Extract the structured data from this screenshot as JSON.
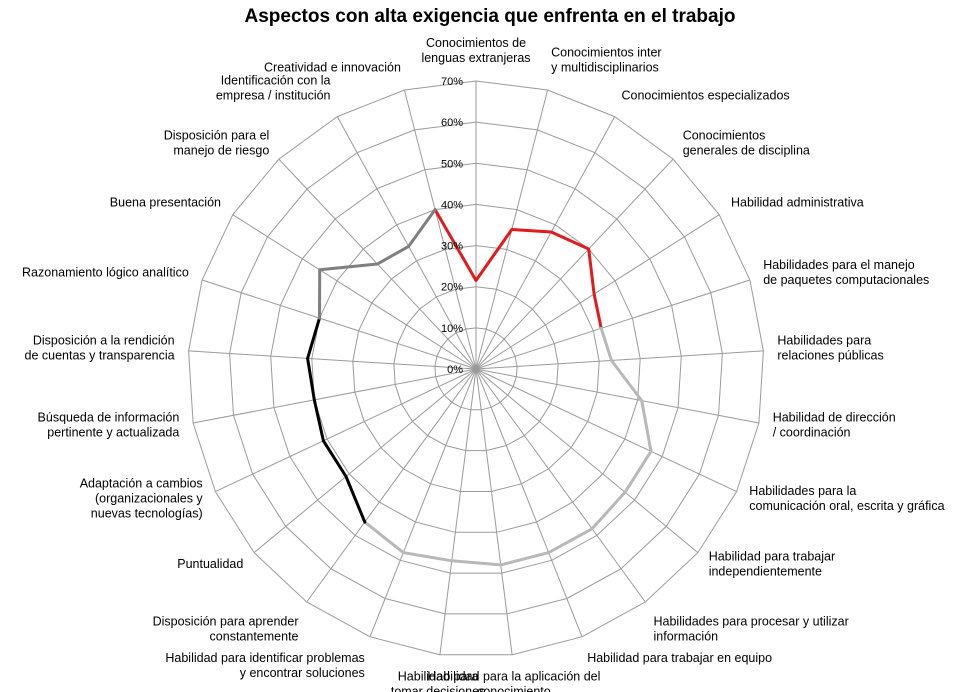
{
  "chart_data": {
    "type": "radar",
    "title": "Aspectos con alta exigencia que enfrenta en el trabajo",
    "ylim": [
      0,
      70
    ],
    "ticks": [
      0,
      10,
      20,
      30,
      40,
      50,
      60,
      70
    ],
    "tick_labels": [
      "0%",
      "10%",
      "20%",
      "30%",
      "40%",
      "50%",
      "60%",
      "70%"
    ],
    "grid": true,
    "categories": [
      "Conocimientos de lenguas extranjeras",
      "Conocimientos inter y multidisciplinarios",
      "Conocimientos especializados",
      "Conocimientos generales de disciplina",
      "Habilidad administrativa",
      "Habilidades para el manejo de paquetes computacionales",
      "Habilidades para relaciones públicas",
      "Habilidad de dirección / coordinación",
      "Habilidades para la comunicación oral, escrita y gráfica",
      "Habilidad para trabajar independientemente",
      "Habilidades para procesar y utilizar información",
      "Habilidad para trabajar en equipo",
      "Habilidad para la aplicación del conocimiento",
      "Habilidad para tomar decisiones",
      "Habilidad para identificar problemas y encontrar soluciones",
      "Disposición para aprender constantemente",
      "Puntualidad",
      "Adaptación a cambios (organizacionales y nuevas tecnologías)",
      "Búsqueda de información pertinente y actualizada",
      "Disposición a la rendición de cuentas y transparencia",
      "Razonamiento lógico analítico",
      "Buena presentación",
      "Disposición para el manejo de riesgo",
      "Identificación con la empresa / institución",
      "Creatividad e innovación"
    ],
    "category_lines": [
      [
        "Conocimientos de",
        "lenguas extranjeras"
      ],
      [
        "Conocimientos inter",
        "y multidisciplinarios"
      ],
      [
        "Conocimientos especializados"
      ],
      [
        "Conocimientos",
        "generales de disciplina"
      ],
      [
        "Habilidad administrativa"
      ],
      [
        "Habilidades para el manejo",
        "de paquetes computacionales"
      ],
      [
        "Habilidades para",
        "relaciones públicas"
      ],
      [
        "Habilidad de dirección",
        "/ coordinación"
      ],
      [
        "Habilidades para la",
        "comunicación oral, escrita y gráfica"
      ],
      [
        "Habilidad para trabajar",
        "independientemente"
      ],
      [
        "Habilidades para procesar y utilizar",
        "información"
      ],
      [
        "Habilidad para trabajar en equipo"
      ],
      [
        "Habilidad para la aplicación del",
        "conocimiento"
      ],
      [
        "Habilidad para",
        "tomar decisiones"
      ],
      [
        "Habilidad para identificar problemas",
        "y encontrar soluciones"
      ],
      [
        "Disposición para aprender",
        "constantemente"
      ],
      [
        "Puntualidad"
      ],
      [
        "Adaptación a cambios",
        "(organizacionales y",
        "nuevas tecnologías)"
      ],
      [
        "Búsqueda de información",
        "pertinente y actualizada"
      ],
      [
        "Disposición a la rendición",
        "de cuentas y transparencia"
      ],
      [
        "Razonamiento lógico analítico"
      ],
      [
        "Buena presentación"
      ],
      [
        "Disposición para el",
        "manejo de riesgo"
      ],
      [
        "Identificación con la",
        "empresa / institución"
      ],
      [
        "Creatividad e innovación"
      ]
    ],
    "values": [
      21.5,
      35,
      38,
      40,
      34,
      32,
      33,
      41,
      47,
      47,
      48,
      48,
      48,
      47,
      48,
      46,
      41,
      41,
      40,
      41,
      40,
      45,
      35,
      34,
      40
    ],
    "segments": [
      {
        "from": 24,
        "to": 5,
        "color": "#e31a1c"
      },
      {
        "from": 5,
        "to": 15,
        "color": "#b8b8b8"
      },
      {
        "from": 15,
        "to": 20,
        "color": "#000000"
      },
      {
        "from": 20,
        "to": 24,
        "color": "#7f7f7f"
      }
    ]
  }
}
